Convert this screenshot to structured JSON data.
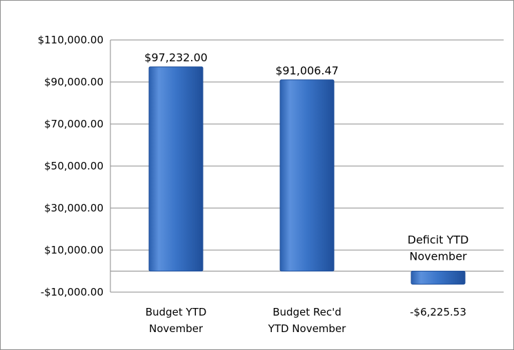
{
  "chart_data": {
    "type": "bar",
    "categories": [
      [
        "Budget YTD",
        "November"
      ],
      [
        "Budget Rec'd",
        "YTD November"
      ],
      [
        "-$6,225.53"
      ]
    ],
    "values": [
      97232.0,
      91006.47,
      -6225.53
    ],
    "data_labels": [
      [
        "$97,232.00"
      ],
      [
        "$91,006.47"
      ],
      [
        "Deficit YTD",
        "November"
      ]
    ],
    "y_ticks": [
      110000,
      90000,
      70000,
      50000,
      30000,
      10000,
      -10000
    ],
    "y_tick_labels": [
      "$110,000.00",
      "$90,000.00",
      "$70,000.00",
      "$50,000.00",
      "$30,000.00",
      "$10,000.00",
      "-$10,000.00"
    ],
    "ylim": [
      -10000,
      110000
    ],
    "grid": true,
    "legend": false,
    "bar_color": "#3a74c8",
    "bar_edge_color": "#1f4f9a"
  }
}
